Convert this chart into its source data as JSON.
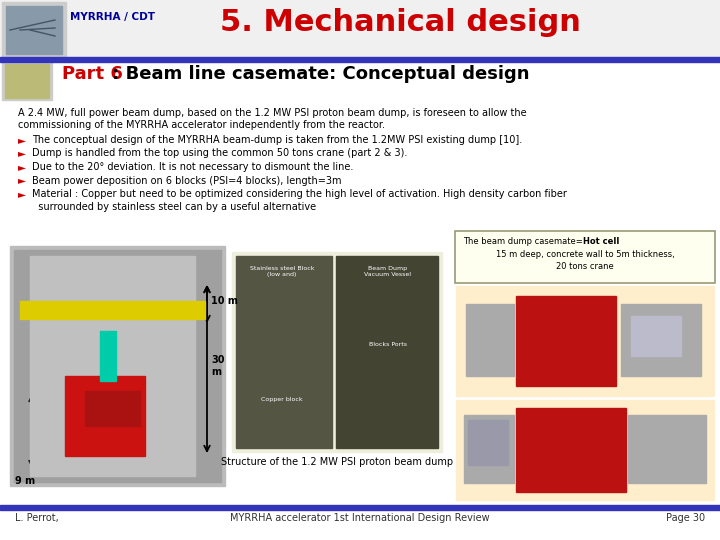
{
  "title": "5. Mechanical design",
  "header_label": "MYRRHA / CDT",
  "subtitle_bold": "Part 6",
  "subtitle_rest": " : Beam line casemate: Conceptual design",
  "bg_color": "#FFFFFF",
  "blue_line_color": "#3333BB",
  "intro_text1": "A 2.4 MW, full power beam dump, based on the 1.2 MW PSI proton beam dump, is foreseen to allow the",
  "intro_text2": "commissioning of the MYRRHA accelerator independently from the reactor.",
  "bullets": [
    "The conceptual design of the MYRRHA beam-dump is taken from the 1.2MW PSI existing dump [10].",
    "Dump is handled from the top using the common 50 tons crane (part 2 & 3).",
    "Due to the 20° deviation. It is not necessary to dismount the line.",
    "Beam power deposition on 6 blocks (PSI=4 blocks), length=3m",
    "Material : Copper but need to be optimized considering the high level of activation. High density carbon fiber",
    "  surrounded by stainless steel can by a useful alternative"
  ],
  "hotcell_line1a": "The beam dump casemate=",
  "hotcell_line1b": "Hot cell",
  "hotcell_line2": "15 m deep, concrete wall to 5m thickness,",
  "hotcell_line3": "20 tons crane",
  "caption_text": "Structure of the 1.2 MW PSI proton beam dump",
  "footer_left": "L. Perrot,",
  "footer_center": "MYRRHA accelerator 1st International Design Review",
  "footer_right": "Page 30",
  "title_color": "#CC0000",
  "subtitle_color": "#CC0000",
  "bullet_color": "#CC0000",
  "header_text_color": "#000099",
  "text_color": "#000000",
  "footer_color": "#333333"
}
